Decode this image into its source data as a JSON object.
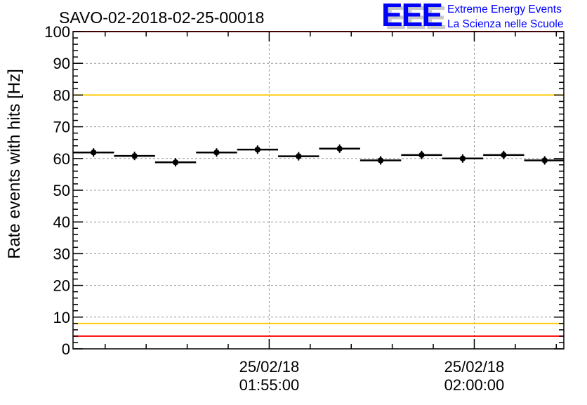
{
  "chart_data": {
    "type": "scatter",
    "title": "SAVO-02-2018-02-25-00018",
    "xlabel": "",
    "ylabel": "Rate events with hits [Hz]",
    "ylim": [
      0,
      100
    ],
    "xlim": [
      "01:50:13",
      "02:02:11"
    ],
    "yticks": [
      "0",
      "10",
      "20",
      "30",
      "40",
      "50",
      "60",
      "70",
      "80",
      "90",
      "100"
    ],
    "xticks": [
      {
        "time": "01:55:00",
        "date": "25/02/18",
        "label": "01:55:00"
      },
      {
        "time": "02:00:00",
        "date": "25/02/18",
        "label": "02:00:00"
      }
    ],
    "grid": true,
    "bin_width_seconds": 60,
    "points": [
      {
        "x": "01:50:43",
        "y": 61.9
      },
      {
        "x": "01:51:43",
        "y": 60.8
      },
      {
        "x": "01:52:43",
        "y": 58.8
      },
      {
        "x": "01:53:43",
        "y": 61.9
      },
      {
        "x": "01:54:43",
        "y": 62.8
      },
      {
        "x": "01:55:43",
        "y": 60.7
      },
      {
        "x": "01:56:43",
        "y": 63.1
      },
      {
        "x": "01:57:43",
        "y": 59.4
      },
      {
        "x": "01:58:43",
        "y": 61.1
      },
      {
        "x": "01:59:43",
        "y": 60.0
      },
      {
        "x": "02:00:43",
        "y": 61.1
      },
      {
        "x": "02:01:43",
        "y": 59.4
      }
    ],
    "reference_lines": [
      {
        "y": 100,
        "color": "#ff0000"
      },
      {
        "y": 80,
        "color": "#ffcc00"
      },
      {
        "y": 8,
        "color": "#ffcc00"
      },
      {
        "y": 4,
        "color": "#ff0000"
      }
    ]
  },
  "logo": {
    "mark": "EEE",
    "line1": "Extreme Energy Events",
    "line2": "La Scienza nelle Scuole",
    "color": "#0000ff"
  }
}
